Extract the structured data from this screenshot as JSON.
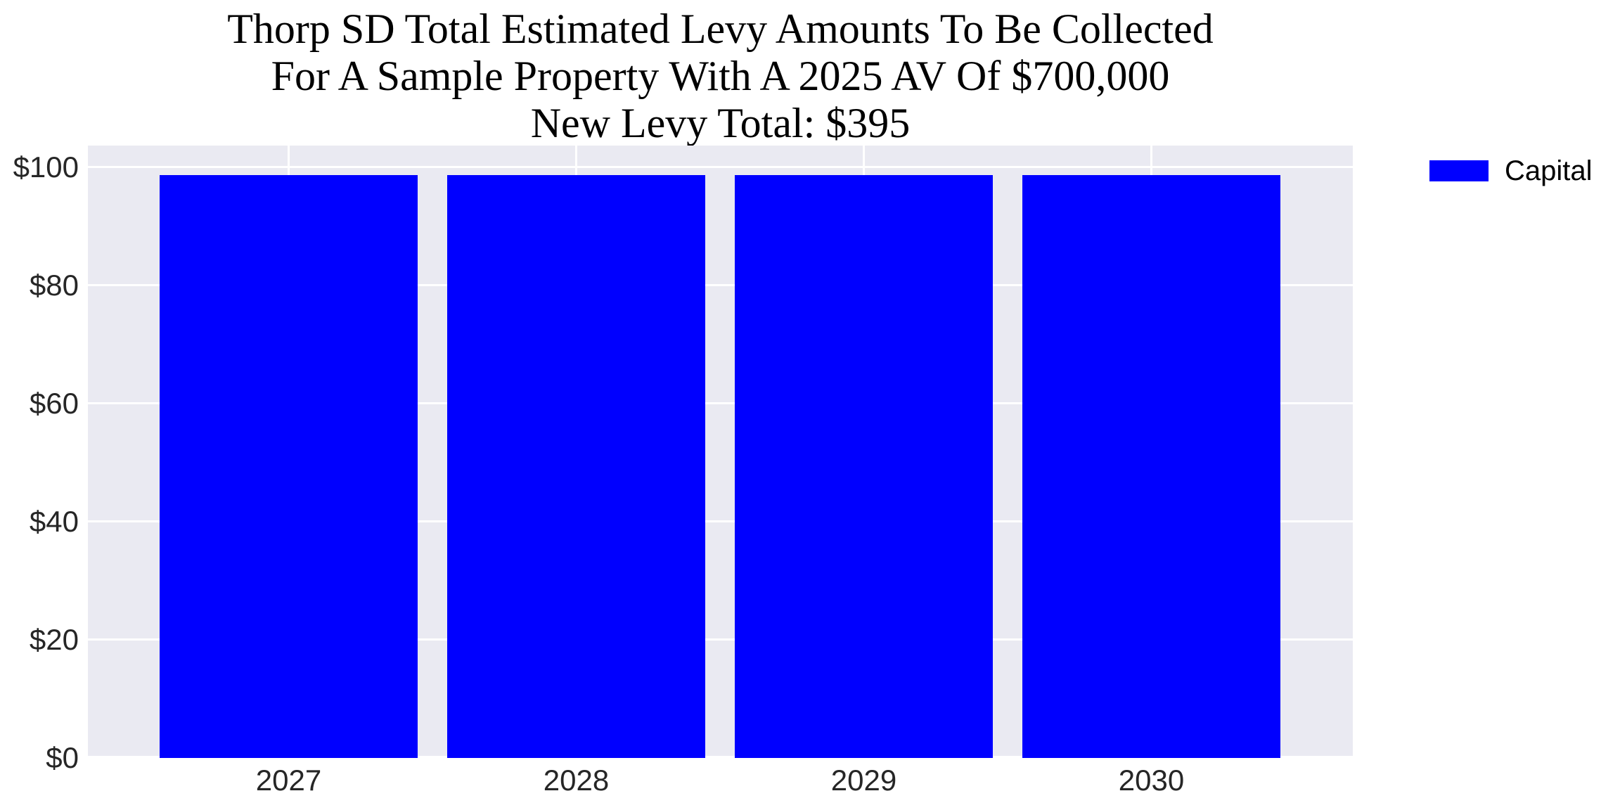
{
  "title": {
    "line1": "Thorp SD Total Estimated Levy Amounts To Be Collected",
    "line2": "For A Sample Property With A 2025 AV Of $700,000",
    "line3": "New Levy Total: $395"
  },
  "legend": {
    "label": "Capital"
  },
  "colors": {
    "bar": "#0000ff",
    "plot_background": "#eaeaf2",
    "gridline": "#ffffff",
    "tick_text": "#262626",
    "title_text": "#000000"
  },
  "chart_data": {
    "type": "bar",
    "title": "Thorp SD Total Estimated Levy Amounts To Be Collected\nFor A Sample Property With A 2025 AV Of $700,000\nNew Levy Total: $395",
    "categories": [
      "2027",
      "2028",
      "2029",
      "2030"
    ],
    "series": [
      {
        "name": "Capital",
        "color": "#0000ff",
        "values": [
          98.75,
          98.75,
          98.75,
          98.75
        ]
      }
    ],
    "xlabel": "",
    "ylabel": "",
    "ylim": [
      0,
      103.69
    ],
    "y_ticks": [
      {
        "value": 0,
        "label": "$0"
      },
      {
        "value": 20,
        "label": "$20"
      },
      {
        "value": 40,
        "label": "$40"
      },
      {
        "value": 60,
        "label": "$60"
      },
      {
        "value": 80,
        "label": "$80"
      },
      {
        "value": 100,
        "label": "$100"
      }
    ],
    "grid": true,
    "legend_position": "outside-upper-right"
  }
}
